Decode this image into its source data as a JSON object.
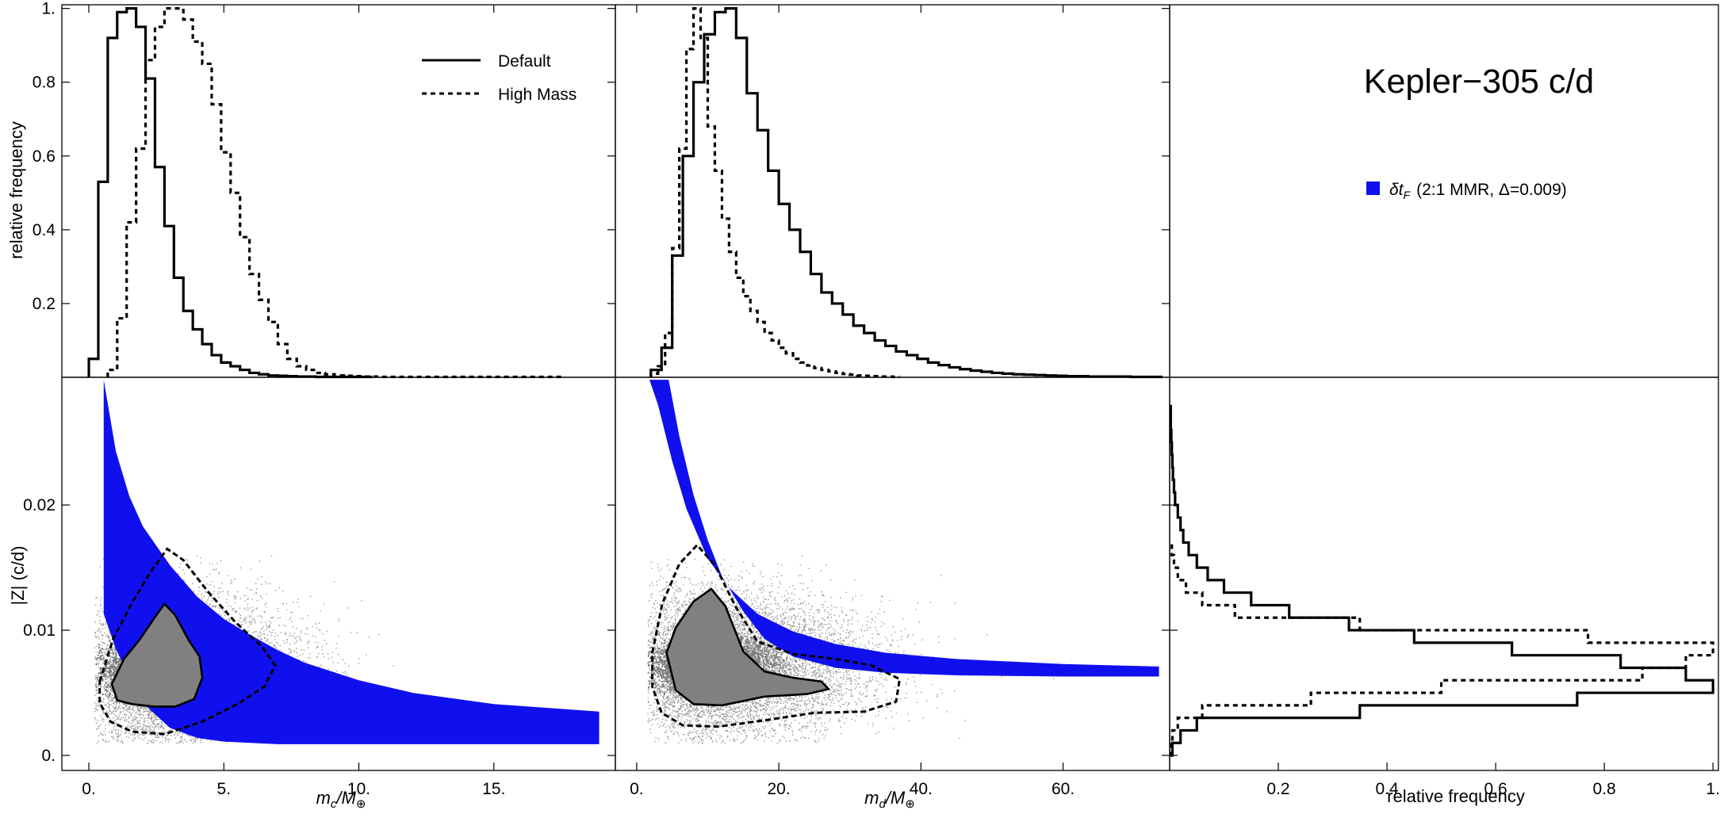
{
  "title": "Kepler−305 c/d",
  "legend": {
    "default_label": "Default",
    "highmass_label": "High Mass",
    "blue_symbol": "δt",
    "blue_subscript": "F",
    "blue_detail": "(2:1 MMR, Δ=0.009)",
    "blue_color": "#1010ee"
  },
  "axes": {
    "top_ylabel": "relative frequency",
    "bottom_ylabel": "|Z| (c/d)",
    "x1_label_main": "m",
    "x1_label_sub": "c",
    "x2_label_main": "m",
    "x2_label_sub": "d",
    "x_label_unit": "/M",
    "x_label_unit_sub": "⊕",
    "x3_label": "relative frequency"
  },
  "chart_data": [
    {
      "type": "step-histogram",
      "panel": "mc-histogram",
      "xlim": [
        -1,
        19.5
      ],
      "ylim": [
        0,
        1.01
      ],
      "yticks": [
        0.2,
        0.4,
        0.6,
        0.8,
        1
      ],
      "ytick_labels": [
        "0.2",
        "0.4",
        "0.6",
        "0.8",
        "1."
      ],
      "series": [
        {
          "name": "Default",
          "style": "solid",
          "bin_start": 0,
          "bin_width": 0.35,
          "values": [
            0.05,
            0.53,
            0.92,
            0.99,
            1.0,
            0.95,
            0.81,
            0.57,
            0.41,
            0.27,
            0.18,
            0.13,
            0.09,
            0.06,
            0.04,
            0.03,
            0.02,
            0.012,
            0.008,
            0.005,
            0.004,
            0.003,
            0.002,
            0.002,
            0.001,
            0.001,
            0.001,
            0.001,
            0.001,
            0.001
          ]
        },
        {
          "name": "High Mass",
          "style": "dashed",
          "bin_start": 0.7,
          "bin_width": 0.35,
          "values": [
            0.02,
            0.16,
            0.42,
            0.62,
            0.86,
            0.95,
            1.0,
            1.0,
            0.97,
            0.91,
            0.85,
            0.74,
            0.61,
            0.5,
            0.38,
            0.28,
            0.21,
            0.15,
            0.09,
            0.05,
            0.03,
            0.02,
            0.012,
            0.008,
            0.005,
            0.004,
            0.003,
            0.002,
            0.002,
            0.001,
            0.001,
            0.001,
            0.001,
            0.001,
            0.001,
            0.001,
            0.001,
            0.001,
            0.001,
            0.001,
            0.001,
            0.001,
            0.001,
            0.001,
            0.001,
            0.001,
            0.001,
            0.001
          ]
        }
      ]
    },
    {
      "type": "step-histogram",
      "panel": "md-histogram",
      "xlim": [
        -3,
        75
      ],
      "ylim": [
        0,
        1.01
      ],
      "series": [
        {
          "name": "Default",
          "style": "solid",
          "bin_start": 2,
          "bin_width": 1.5,
          "values": [
            0.02,
            0.08,
            0.33,
            0.6,
            0.8,
            0.93,
            0.99,
            1.0,
            0.92,
            0.77,
            0.67,
            0.56,
            0.47,
            0.4,
            0.34,
            0.28,
            0.23,
            0.2,
            0.17,
            0.14,
            0.12,
            0.1,
            0.085,
            0.07,
            0.06,
            0.05,
            0.04,
            0.033,
            0.027,
            0.022,
            0.018,
            0.015,
            0.012,
            0.01,
            0.008,
            0.007,
            0.006,
            0.005,
            0.004,
            0.003,
            0.003,
            0.002,
            0.002,
            0.002,
            0.002,
            0.001,
            0.001,
            0.001
          ]
        },
        {
          "name": "High Mass",
          "style": "dashed",
          "bin_start": 2,
          "bin_width": 1.0,
          "values": [
            0.01,
            0.03,
            0.12,
            0.35,
            0.62,
            0.89,
            1.0,
            0.92,
            0.68,
            0.56,
            0.43,
            0.34,
            0.27,
            0.22,
            0.18,
            0.15,
            0.12,
            0.1,
            0.08,
            0.065,
            0.05,
            0.04,
            0.032,
            0.025,
            0.02,
            0.016,
            0.012,
            0.009,
            0.007,
            0.005,
            0.004,
            0.003,
            0.002,
            0.002,
            0.001
          ]
        }
      ]
    },
    {
      "type": "scatter-contour",
      "panel": "mc-vs-Z",
      "xlim": [
        -1,
        19.5
      ],
      "ylim": [
        -0.0012,
        0.0302
      ],
      "xticks": [
        0,
        5,
        10,
        15
      ],
      "xtick_labels": [
        "0.",
        "5.",
        "10.",
        "15."
      ],
      "yticks": [
        0,
        0.01,
        0.02
      ],
      "ytick_labels": [
        "0.",
        "0.01",
        "0.02"
      ],
      "blue_band": {
        "name": "δt_F (2:1 MMR, Δ=0.009)",
        "upper": [
          [
            0.55,
            0.03
          ],
          [
            1.0,
            0.0243
          ],
          [
            1.5,
            0.0207
          ],
          [
            2.0,
            0.0183
          ],
          [
            3.0,
            0.0152
          ],
          [
            4.0,
            0.0127
          ],
          [
            5.0,
            0.0109
          ],
          [
            6.0,
            0.0096
          ],
          [
            7.0,
            0.0084
          ],
          [
            8.0,
            0.0074
          ],
          [
            10.0,
            0.006
          ],
          [
            12.0,
            0.005
          ],
          [
            15.0,
            0.0041
          ],
          [
            18.9,
            0.0035
          ]
        ],
        "lower": [
          [
            0.55,
            0.0113
          ],
          [
            1.0,
            0.0085
          ],
          [
            1.5,
            0.0063
          ],
          [
            2.0,
            0.0042
          ],
          [
            3.0,
            0.0022
          ],
          [
            4.0,
            0.0014
          ],
          [
            5.0,
            0.0011
          ],
          [
            7.0,
            0.0009
          ],
          [
            10.0,
            0.0009
          ],
          [
            15.0,
            0.0009
          ],
          [
            18.9,
            0.0009
          ]
        ]
      },
      "cloud": {
        "x_range": [
          0.2,
          13.0
        ],
        "y_range": [
          0.001,
          0.016
        ],
        "density_center": [
          2.5,
          0.0068
        ]
      },
      "contour_inner": [
        [
          0.85,
          0.0057
        ],
        [
          1.3,
          0.0077
        ],
        [
          1.9,
          0.0093
        ],
        [
          2.4,
          0.0109
        ],
        [
          2.8,
          0.0121
        ],
        [
          3.2,
          0.0112
        ],
        [
          3.7,
          0.0092
        ],
        [
          4.1,
          0.0079
        ],
        [
          4.2,
          0.0062
        ],
        [
          3.9,
          0.0045
        ],
        [
          3.2,
          0.0039
        ],
        [
          2.4,
          0.0039
        ],
        [
          1.6,
          0.0041
        ],
        [
          1.05,
          0.0044
        ],
        [
          0.85,
          0.0057
        ]
      ],
      "contour_outer": [
        [
          0.4,
          0.0059
        ],
        [
          0.9,
          0.0093
        ],
        [
          1.6,
          0.0122
        ],
        [
          2.3,
          0.0147
        ],
        [
          2.9,
          0.0165
        ],
        [
          3.5,
          0.0156
        ],
        [
          4.4,
          0.0131
        ],
        [
          5.4,
          0.0107
        ],
        [
          6.4,
          0.0087
        ],
        [
          6.9,
          0.0072
        ],
        [
          6.5,
          0.0055
        ],
        [
          5.5,
          0.0041
        ],
        [
          4.2,
          0.0027
        ],
        [
          2.8,
          0.0017
        ],
        [
          1.6,
          0.0019
        ],
        [
          0.8,
          0.0027
        ],
        [
          0.4,
          0.0042
        ],
        [
          0.4,
          0.0059
        ]
      ]
    },
    {
      "type": "scatter-contour",
      "panel": "md-vs-Z",
      "xlim": [
        -3,
        75
      ],
      "ylim": [
        -0.0012,
        0.0302
      ],
      "xticks": [
        0,
        20,
        40,
        60
      ],
      "xtick_labels": [
        "0.",
        "20.",
        "40.",
        "60."
      ],
      "blue_band": {
        "name": "δt_F (2:1 MMR, Δ=0.009)",
        "upper": [
          [
            1.8,
            0.03
          ],
          [
            3.0,
            0.028
          ],
          [
            5.0,
            0.0235
          ],
          [
            7.0,
            0.0197
          ],
          [
            10.0,
            0.0157
          ],
          [
            13.0,
            0.0134
          ],
          [
            17.0,
            0.0113
          ],
          [
            22.0,
            0.0099
          ],
          [
            28.0,
            0.0089
          ],
          [
            35.0,
            0.0082
          ],
          [
            45.0,
            0.0077
          ],
          [
            60.0,
            0.0073
          ],
          [
            73.5,
            0.0071
          ]
        ],
        "lower": [
          [
            4.5,
            0.03
          ],
          [
            6.0,
            0.0255
          ],
          [
            8.0,
            0.0208
          ],
          [
            10.0,
            0.0172
          ],
          [
            12.0,
            0.0143
          ],
          [
            15.0,
            0.0115
          ],
          [
            18.0,
            0.0093
          ],
          [
            22.0,
            0.0079
          ],
          [
            28.0,
            0.007
          ],
          [
            35.0,
            0.0066
          ],
          [
            45.0,
            0.0064
          ],
          [
            60.0,
            0.0063
          ],
          [
            73.5,
            0.0063
          ]
        ]
      },
      "cloud": {
        "x_range": [
          1.5,
          62.0
        ],
        "y_range": [
          0.001,
          0.016
        ],
        "density_center": [
          10.5,
          0.0072
        ]
      },
      "contour_inner": [
        [
          4.2,
          0.0082
        ],
        [
          5.5,
          0.0102
        ],
        [
          8.0,
          0.0123
        ],
        [
          10.5,
          0.0133
        ],
        [
          12.5,
          0.0119
        ],
        [
          15.0,
          0.0083
        ],
        [
          18.0,
          0.0067
        ],
        [
          22.0,
          0.0062
        ],
        [
          26.0,
          0.0059
        ],
        [
          27.0,
          0.0053
        ],
        [
          24.0,
          0.0049
        ],
        [
          18.0,
          0.0047
        ],
        [
          12.0,
          0.004
        ],
        [
          8.0,
          0.0041
        ],
        [
          5.5,
          0.0052
        ],
        [
          4.2,
          0.0082
        ]
      ],
      "contour_outer": [
        [
          2.2,
          0.0082
        ],
        [
          3.6,
          0.0121
        ],
        [
          6.0,
          0.0153
        ],
        [
          8.5,
          0.0168
        ],
        [
          11.0,
          0.0152
        ],
        [
          14.0,
          0.0118
        ],
        [
          17.0,
          0.0091
        ],
        [
          22.0,
          0.0081
        ],
        [
          28.0,
          0.0077
        ],
        [
          33.0,
          0.0072
        ],
        [
          37.0,
          0.0061
        ],
        [
          36.5,
          0.0043
        ],
        [
          32.0,
          0.0035
        ],
        [
          25.0,
          0.0034
        ],
        [
          18.0,
          0.0028
        ],
        [
          11.5,
          0.0023
        ],
        [
          6.5,
          0.0024
        ],
        [
          3.5,
          0.0034
        ],
        [
          2.2,
          0.0055
        ],
        [
          2.2,
          0.0082
        ]
      ]
    },
    {
      "type": "step-histogram-horizontal",
      "panel": "Z-histogram",
      "xlim": [
        0,
        1.01
      ],
      "ylim": [
        -0.0012,
        0.0302
      ],
      "xticks": [
        0.2,
        0.4,
        0.6,
        0.8,
        1
      ],
      "xtick_labels": [
        "0.2",
        "0.4",
        "0.6",
        "0.8",
        "1."
      ],
      "series": [
        {
          "name": "Default",
          "style": "solid",
          "bin_start": 0,
          "bin_width": 0.001,
          "values": [
            0.005,
            0.02,
            0.05,
            0.35,
            0.75,
            1.0,
            0.95,
            0.83,
            0.63,
            0.45,
            0.33,
            0.22,
            0.15,
            0.1,
            0.07,
            0.05,
            0.035,
            0.025,
            0.02,
            0.015,
            0.01,
            0.008,
            0.006,
            0.005,
            0.004,
            0.003,
            0.002,
            0.002
          ]
        },
        {
          "name": "High Mass",
          "style": "dashed",
          "bin_start": 0,
          "bin_width": 0.001,
          "values": [
            0.002,
            0.005,
            0.015,
            0.06,
            0.26,
            0.5,
            0.87,
            0.95,
            1.0,
            0.77,
            0.35,
            0.12,
            0.06,
            0.03,
            0.015,
            0.008,
            0.004
          ]
        }
      ]
    }
  ]
}
